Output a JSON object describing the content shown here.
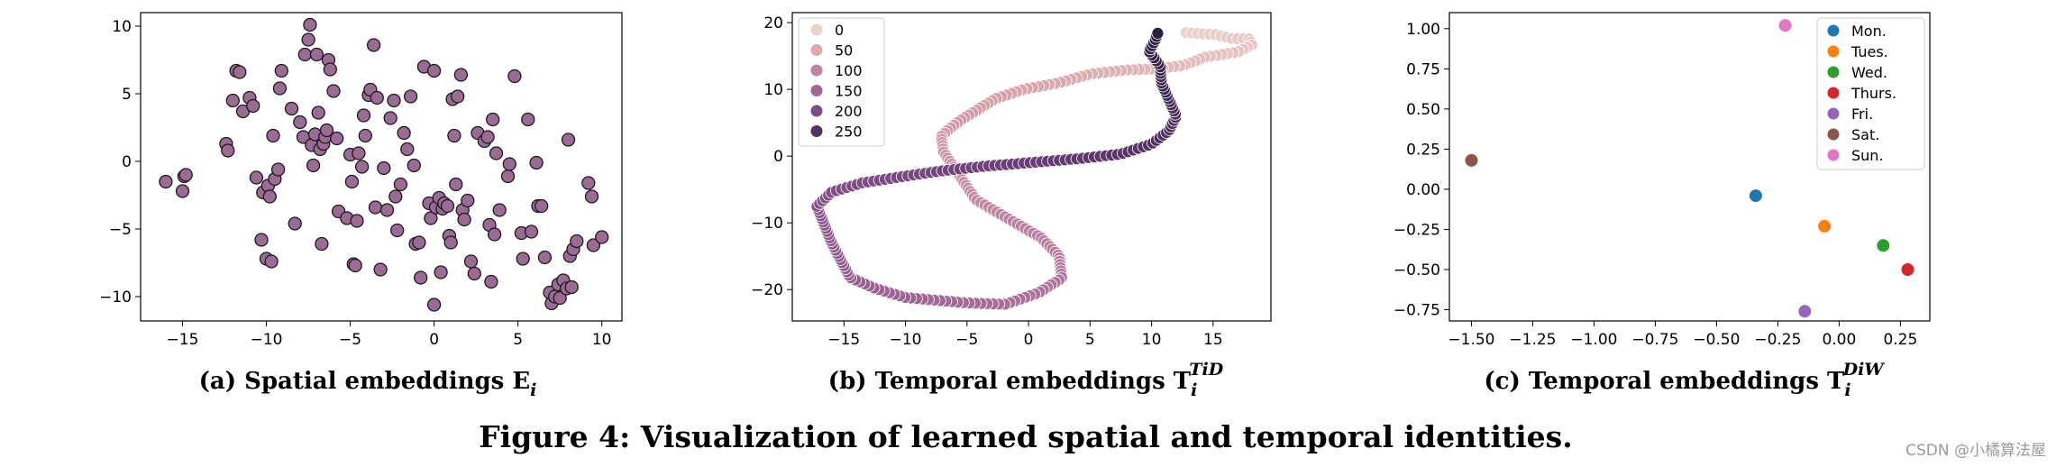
{
  "figure_caption": "Figure 4: Visualization of learned spatial and temporal identities.",
  "watermark": "CSDN @小橘算法屋",
  "colors": {
    "spatial_fill": "#9b6b95",
    "edge": "#1a1a1a",
    "temporal_gradient": [
      "#edd1cb",
      "#d9a2a6",
      "#b97ba0",
      "#935a8f",
      "#6a3d78",
      "#2d1e3e"
    ]
  },
  "chart_data": [
    {
      "id": "a",
      "type": "scatter",
      "title": "",
      "caption_main": "(a) Spatial embeddings E",
      "caption_sub": "i",
      "xlabel": "",
      "ylabel": "",
      "xlim": [
        -17.5,
        11.2
      ],
      "ylim": [
        -11.8,
        11.0
      ],
      "xticks": [
        -15,
        -10,
        -5,
        0,
        5,
        10
      ],
      "xtick_labels": [
        "−15",
        "−10",
        "−5",
        "0",
        "5",
        "10"
      ],
      "yticks": [
        -10,
        -5,
        0,
        5,
        10
      ],
      "ytick_labels": [
        "−10",
        "−5",
        "0",
        "5",
        "10"
      ],
      "points": [
        [
          -16.0,
          -1.5
        ],
        [
          -14.9,
          -1.1
        ],
        [
          -15.0,
          -2.2
        ],
        [
          -14.8,
          -1.0
        ],
        [
          -12.4,
          1.3
        ],
        [
          -12.3,
          0.8
        ],
        [
          -12.0,
          4.5
        ],
        [
          -11.8,
          6.7
        ],
        [
          -11.6,
          6.6
        ],
        [
          -11.4,
          3.7
        ],
        [
          -11.0,
          4.7
        ],
        [
          -10.8,
          4.1
        ],
        [
          -10.6,
          -1.2
        ],
        [
          -10.3,
          -5.8
        ],
        [
          -10.2,
          -2.3
        ],
        [
          -10.0,
          -7.2
        ],
        [
          -9.9,
          -1.8
        ],
        [
          -9.8,
          -2.6
        ],
        [
          -9.7,
          -7.4
        ],
        [
          -9.6,
          1.9
        ],
        [
          -9.5,
          -1.3
        ],
        [
          -9.3,
          -0.6
        ],
        [
          -9.2,
          5.4
        ],
        [
          -9.1,
          6.7
        ],
        [
          -8.5,
          3.9
        ],
        [
          -8.3,
          -4.6
        ],
        [
          -8.0,
          2.9
        ],
        [
          -7.8,
          1.8
        ],
        [
          -7.7,
          7.9
        ],
        [
          -7.5,
          9.0
        ],
        [
          -7.4,
          10.1
        ],
        [
          -7.3,
          1.2
        ],
        [
          -7.2,
          -0.3
        ],
        [
          -7.1,
          2.0
        ],
        [
          -7.0,
          7.9
        ],
        [
          -6.9,
          3.6
        ],
        [
          -6.8,
          0.9
        ],
        [
          -6.7,
          -6.1
        ],
        [
          -6.6,
          1.3
        ],
        [
          -6.5,
          1.8
        ],
        [
          -6.4,
          2.3
        ],
        [
          -6.3,
          7.5
        ],
        [
          -6.2,
          6.8
        ],
        [
          -6.0,
          5.2
        ],
        [
          -5.8,
          1.7
        ],
        [
          -5.7,
          -3.7
        ],
        [
          -5.2,
          -4.2
        ],
        [
          -5.0,
          0.5
        ],
        [
          -4.9,
          -1.5
        ],
        [
          -4.8,
          -7.6
        ],
        [
          -4.7,
          -7.7
        ],
        [
          -4.6,
          -4.4
        ],
        [
          -4.5,
          0.6
        ],
        [
          -4.3,
          -0.4
        ],
        [
          -4.2,
          3.4
        ],
        [
          -4.1,
          1.9
        ],
        [
          -3.9,
          4.9
        ],
        [
          -3.8,
          5.3
        ],
        [
          -3.6,
          8.6
        ],
        [
          -3.5,
          -3.4
        ],
        [
          -3.4,
          4.7
        ],
        [
          -3.2,
          -8.0
        ],
        [
          -3.0,
          -0.5
        ],
        [
          -2.8,
          -3.6
        ],
        [
          -2.6,
          3.2
        ],
        [
          -2.4,
          4.5
        ],
        [
          -2.3,
          -2.6
        ],
        [
          -2.2,
          -5.1
        ],
        [
          -2.0,
          -1.7
        ],
        [
          -1.8,
          2.1
        ],
        [
          -1.6,
          0.9
        ],
        [
          -1.4,
          4.8
        ],
        [
          -1.2,
          -0.3
        ],
        [
          -1.1,
          -6.1
        ],
        [
          -0.9,
          -6.0
        ],
        [
          -0.8,
          -8.6
        ],
        [
          -0.6,
          7.0
        ],
        [
          -0.3,
          -3.1
        ],
        [
          -0.2,
          -4.2
        ],
        [
          0.0,
          6.7
        ],
        [
          0.0,
          -10.6
        ],
        [
          0.1,
          -3.4
        ],
        [
          0.3,
          -2.7
        ],
        [
          0.4,
          -8.2
        ],
        [
          0.5,
          -3.5
        ],
        [
          0.6,
          -3.1
        ],
        [
          0.8,
          -3.3
        ],
        [
          0.9,
          -5.5
        ],
        [
          1.0,
          -6.0
        ],
        [
          1.1,
          4.6
        ],
        [
          1.2,
          1.9
        ],
        [
          1.3,
          -1.7
        ],
        [
          1.4,
          4.8
        ],
        [
          1.6,
          6.4
        ],
        [
          1.7,
          -3.6
        ],
        [
          1.8,
          -4.3
        ],
        [
          2.0,
          -2.9
        ],
        [
          2.2,
          -7.4
        ],
        [
          2.4,
          -8.3
        ],
        [
          2.6,
          2.1
        ],
        [
          3.0,
          1.5
        ],
        [
          3.2,
          1.8
        ],
        [
          3.3,
          -4.7
        ],
        [
          3.4,
          -8.9
        ],
        [
          3.5,
          3.1
        ],
        [
          3.6,
          -5.4
        ],
        [
          3.7,
          0.6
        ],
        [
          3.9,
          -3.6
        ],
        [
          4.4,
          -1.1
        ],
        [
          4.5,
          -0.2
        ],
        [
          4.8,
          6.3
        ],
        [
          5.2,
          -5.3
        ],
        [
          5.3,
          -7.2
        ],
        [
          5.6,
          3.1
        ],
        [
          5.8,
          -5.2
        ],
        [
          6.1,
          -0.1
        ],
        [
          6.2,
          -3.3
        ],
        [
          6.4,
          -3.3
        ],
        [
          6.6,
          -7.1
        ],
        [
          6.9,
          -9.7
        ],
        [
          7.0,
          -10.5
        ],
        [
          7.2,
          -10.0
        ],
        [
          7.4,
          -9.1
        ],
        [
          7.5,
          -10.1
        ],
        [
          7.7,
          -8.8
        ],
        [
          7.9,
          -9.4
        ],
        [
          8.0,
          1.6
        ],
        [
          8.1,
          -7.0
        ],
        [
          8.2,
          -9.3
        ],
        [
          8.3,
          -6.5
        ],
        [
          8.5,
          -5.9
        ],
        [
          9.2,
          -1.6
        ],
        [
          9.4,
          -2.6
        ],
        [
          9.5,
          -6.2
        ],
        [
          10.0,
          -5.6
        ]
      ]
    },
    {
      "id": "b",
      "type": "scatter",
      "title": "",
      "caption_main": "(b) Temporal embeddings T",
      "caption_sub": "i",
      "caption_sup": "TiD",
      "xlabel": "",
      "ylabel": "",
      "xlim": [
        -19.2,
        19.7
      ],
      "ylim": [
        -24.7,
        21.5
      ],
      "xticks": [
        -15,
        -10,
        -5,
        0,
        5,
        10,
        15
      ],
      "xtick_labels": [
        "−15",
        "−10",
        "−5",
        "0",
        "5",
        "10",
        "15"
      ],
      "yticks": [
        -20,
        -10,
        0,
        10,
        20
      ],
      "ytick_labels": [
        "−20",
        "−10",
        "0",
        "10",
        "20"
      ],
      "legend": {
        "placement": "top-left",
        "title": "",
        "labels": [
          "0",
          "50",
          "100",
          "150",
          "200",
          "250"
        ],
        "values": [
          0,
          50,
          100,
          150,
          200,
          250
        ]
      },
      "n_points": 288,
      "path_points": [
        [
          12.8,
          18.5
        ],
        [
          15.2,
          18.2
        ],
        [
          16.6,
          17.6
        ],
        [
          17.9,
          17.6
        ],
        [
          18.2,
          16.7
        ],
        [
          17.0,
          15.6
        ],
        [
          14.3,
          14.8
        ],
        [
          12.6,
          13.6
        ],
        [
          10.5,
          13.1
        ],
        [
          7.9,
          12.9
        ],
        [
          5.0,
          12.3
        ],
        [
          2.5,
          11.0
        ],
        [
          -0.4,
          10.0
        ],
        [
          -2.7,
          8.6
        ],
        [
          -5.5,
          5.4
        ],
        [
          -6.5,
          4.0
        ],
        [
          -7.1,
          2.9
        ],
        [
          -6.9,
          0.6
        ],
        [
          -4.3,
          -6.5
        ],
        [
          -2.0,
          -9.0
        ],
        [
          1.0,
          -12.2
        ],
        [
          2.5,
          -15.0
        ],
        [
          2.7,
          -18.3
        ],
        [
          0.8,
          -20.5
        ],
        [
          -1.9,
          -22.2
        ],
        [
          -5.0,
          -22.0
        ],
        [
          -7.5,
          -21.6
        ],
        [
          -10.0,
          -21.2
        ],
        [
          -12.5,
          -19.8
        ],
        [
          -14.5,
          -18.2
        ],
        [
          -16.0,
          -13.0
        ],
        [
          -17.2,
          -7.5
        ],
        [
          -16.0,
          -5.4
        ],
        [
          -13.5,
          -4.0
        ],
        [
          -10.0,
          -3.0
        ],
        [
          -7.0,
          -2.2
        ],
        [
          -3.5,
          -1.5
        ],
        [
          0.0,
          -1.0
        ],
        [
          4.0,
          -0.4
        ],
        [
          7.5,
          0.3
        ],
        [
          10.0,
          1.8
        ],
        [
          11.4,
          3.8
        ],
        [
          12.0,
          6.0
        ],
        [
          11.4,
          8.5
        ],
        [
          10.8,
          11.0
        ],
        [
          10.7,
          13.5
        ],
        [
          9.8,
          15.7
        ],
        [
          10.3,
          17.4
        ],
        [
          10.5,
          18.4
        ]
      ]
    },
    {
      "id": "c",
      "type": "scatter",
      "title": "",
      "caption_main": "(c) Temporal embeddings T",
      "caption_sub": "i",
      "caption_sup": "DiW",
      "xlabel": "",
      "ylabel": "",
      "xlim": [
        -1.59,
        0.37
      ],
      "ylim": [
        -0.82,
        1.1
      ],
      "xticks": [
        -1.5,
        -1.25,
        -1.0,
        -0.75,
        -0.5,
        -0.25,
        0.0,
        0.25
      ],
      "xtick_labels": [
        "−1.50",
        "−1.25",
        "−1.00",
        "−0.75",
        "−0.50",
        "−0.25",
        "0.00",
        "0.25"
      ],
      "yticks": [
        -0.75,
        -0.5,
        -0.25,
        0.0,
        0.25,
        0.5,
        0.75,
        1.0
      ],
      "ytick_labels": [
        "−0.75",
        "−0.50",
        "−0.25",
        "0.00",
        "0.25",
        "0.50",
        "0.75",
        "1.00"
      ],
      "legend": {
        "placement": "top-right"
      },
      "series": [
        {
          "name": "Mon.",
          "color": "#1f77b4",
          "x": -0.34,
          "y": -0.04
        },
        {
          "name": "Tues.",
          "color": "#ff7f0e",
          "x": -0.06,
          "y": -0.23
        },
        {
          "name": "Wed.",
          "color": "#2ca02c",
          "x": 0.18,
          "y": -0.35
        },
        {
          "name": "Thurs.",
          "color": "#d62728",
          "x": 0.28,
          "y": -0.5
        },
        {
          "name": "Fri.",
          "color": "#9467bd",
          "x": -0.14,
          "y": -0.76
        },
        {
          "name": "Sat.",
          "color": "#8c564b",
          "x": -1.5,
          "y": 0.18
        },
        {
          "name": "Sun.",
          "color": "#e377c2",
          "x": -0.22,
          "y": 1.02
        }
      ]
    }
  ]
}
